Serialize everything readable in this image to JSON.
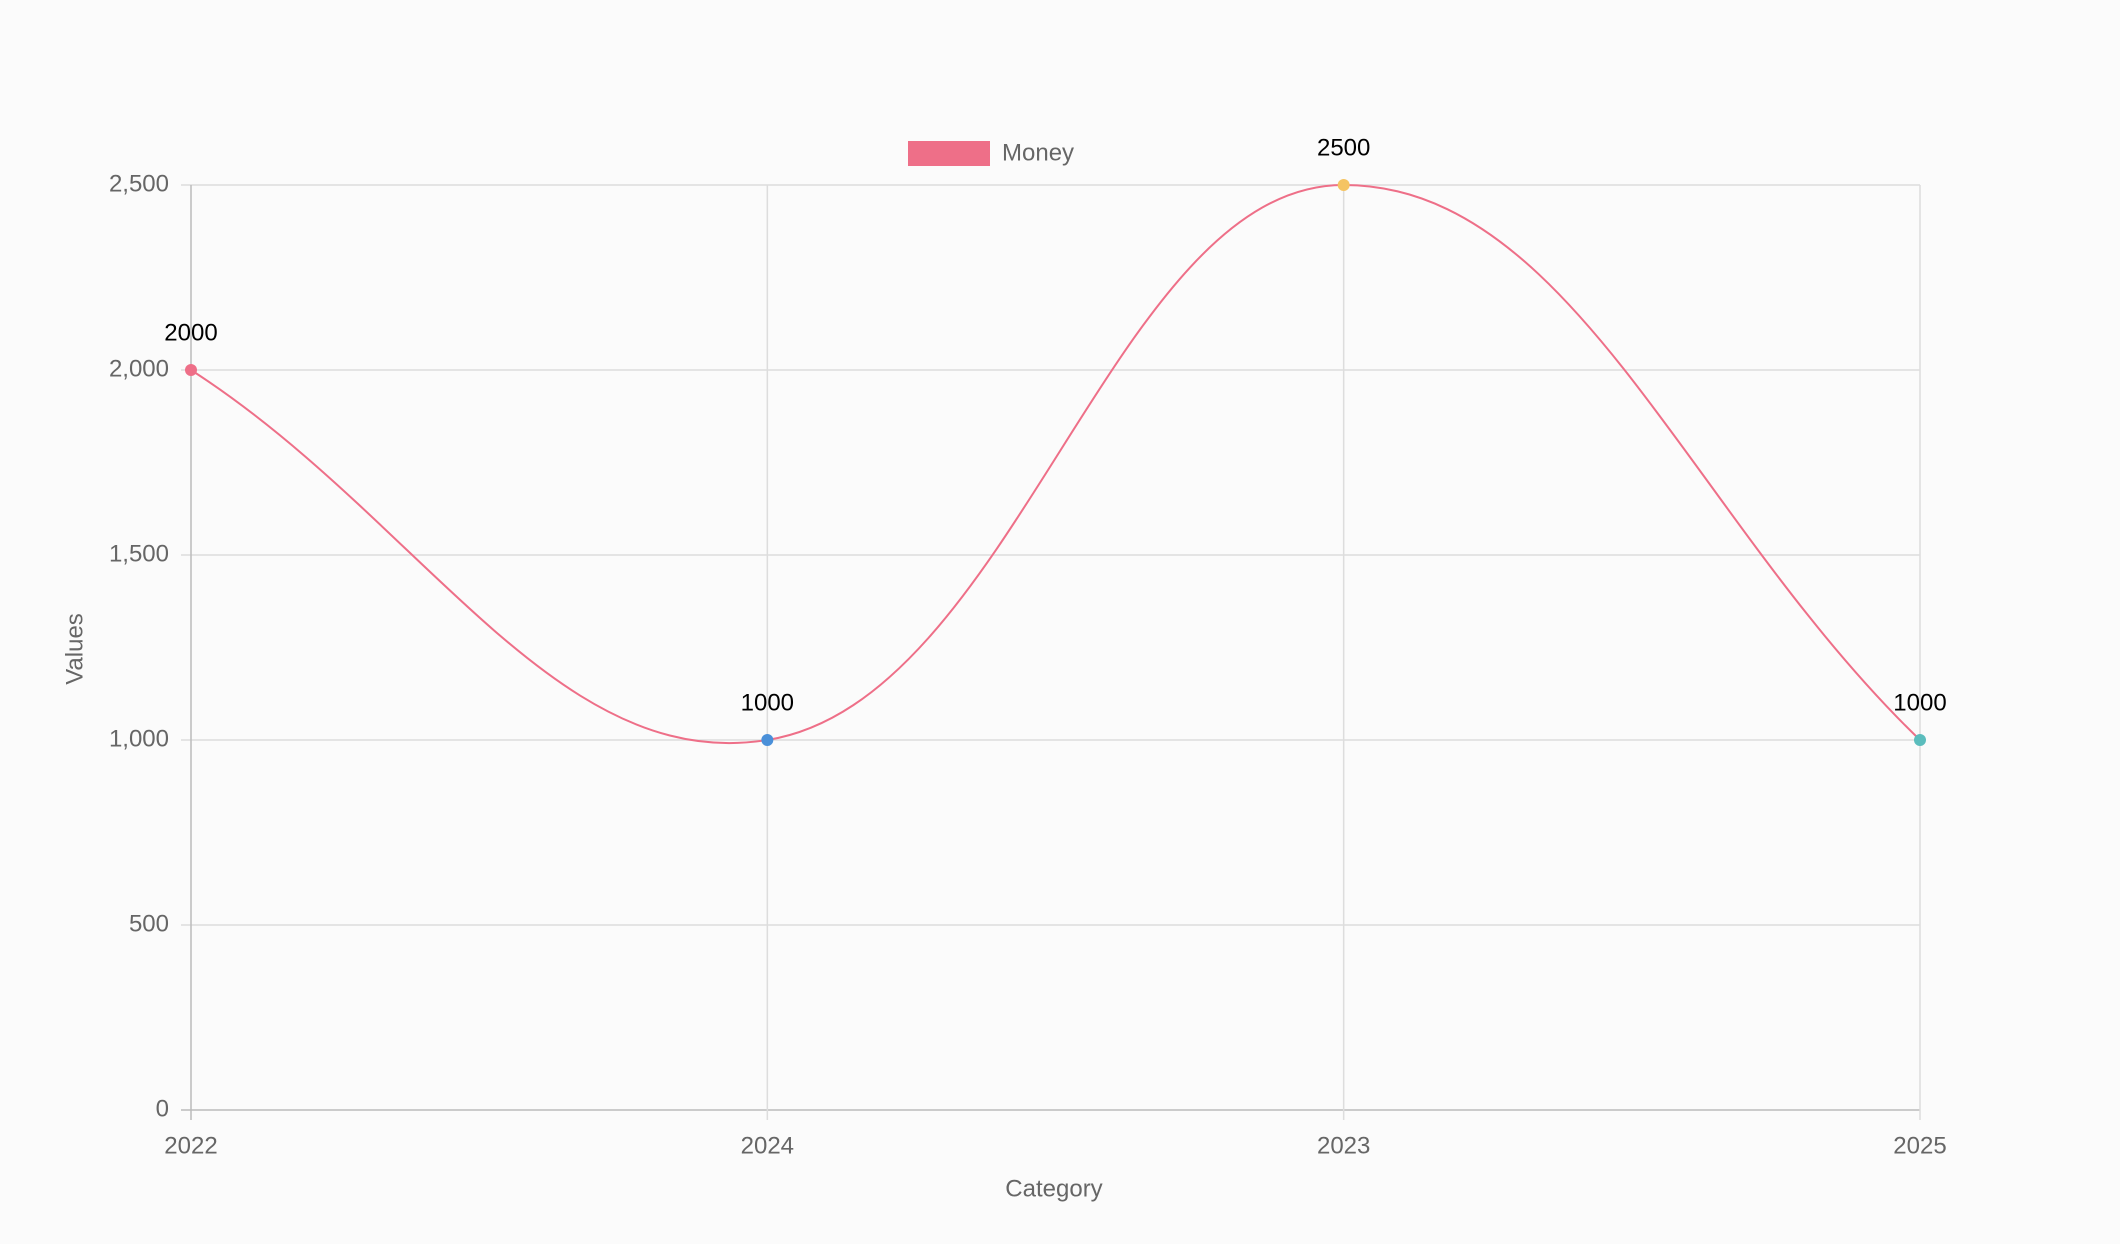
{
  "chart_data": {
    "type": "line",
    "legend_position": "top",
    "x_label": "Category",
    "y_label": "Values",
    "categories": [
      "2022",
      "2024",
      "2023",
      "2025"
    ],
    "series": [
      {
        "name": "Money",
        "color": "#ee6f88",
        "point_colors": [
          "#ee6f88",
          "#4a90d9",
          "#f5c462",
          "#5bbdbd"
        ],
        "values": [
          2000,
          1000,
          2500,
          1000
        ]
      }
    ],
    "ylim": [
      0,
      2500
    ],
    "yticks": [
      0,
      500,
      {
        "value": 1000,
        "label": "1,000"
      },
      {
        "value": 1500,
        "label": "1,500"
      },
      {
        "value": 2000,
        "label": "2,000"
      },
      {
        "value": 2500,
        "label": "2,500"
      }
    ],
    "grid": true,
    "smooth": true
  }
}
